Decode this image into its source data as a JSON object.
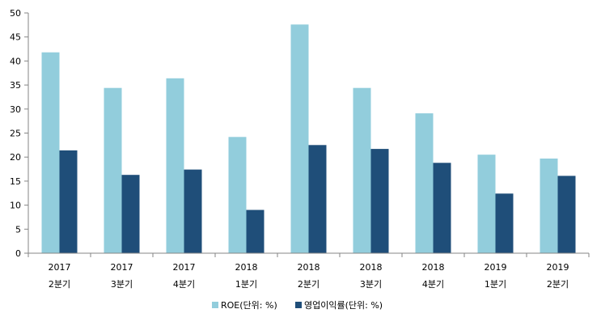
{
  "chart_data": {
    "type": "bar",
    "categories": [
      [
        "2017",
        "2분기"
      ],
      [
        "2017",
        "3분기"
      ],
      [
        "2017",
        "4분기"
      ],
      [
        "2018",
        "1분기"
      ],
      [
        "2018",
        "2분기"
      ],
      [
        "2018",
        "3분기"
      ],
      [
        "2018",
        "4분기"
      ],
      [
        "2019",
        "1분기"
      ],
      [
        "2019",
        "2분기"
      ]
    ],
    "series": [
      {
        "name": "ROE(단위: %)",
        "color": "#92cddc",
        "values": [
          41.8,
          34.4,
          36.4,
          24.2,
          47.6,
          34.4,
          29.1,
          20.5,
          19.7
        ]
      },
      {
        "name": "영업이익률(단위: %)",
        "color": "#1f4e79",
        "values": [
          21.4,
          16.3,
          17.4,
          9.0,
          22.5,
          21.7,
          18.8,
          12.4,
          16.1
        ]
      }
    ],
    "ylim": [
      0,
      50
    ],
    "yticks": [
      0,
      5,
      10,
      15,
      20,
      25,
      30,
      35,
      40,
      45,
      50
    ],
    "legend_position": "bottom",
    "grid": false
  }
}
